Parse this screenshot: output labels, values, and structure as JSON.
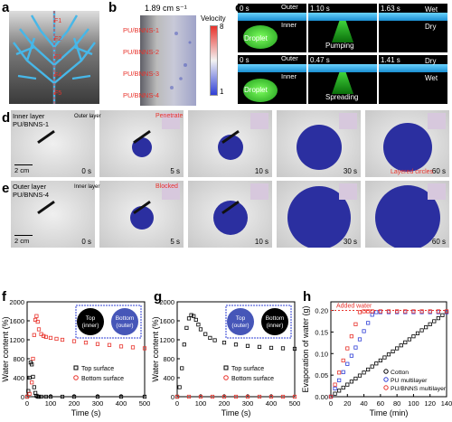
{
  "panels": {
    "a": {
      "label": "a",
      "forces": [
        "F1",
        "F2",
        "F3",
        "F4",
        "F5"
      ]
    },
    "b": {
      "label": "b",
      "flow": "1.89 cm s⁻¹",
      "layers": [
        "PU/BNNS-1",
        "PU/BNNS-2",
        "PU/BNNS-3",
        "PU/BNNS-4"
      ],
      "legend_title": "Velocity",
      "legend_max": "8",
      "legend_min": "1"
    },
    "c": {
      "label": "c",
      "row1": {
        "times": [
          "0 s",
          "1.10 s",
          "1.63 s"
        ],
        "outer": "Outer",
        "inner": "Inner",
        "droplet": "Droplet",
        "action": "Pumping",
        "state_top": "Wet",
        "state_bottom": "Dry"
      },
      "row2": {
        "times": [
          "0 s",
          "0.47 s",
          "1.41 s"
        ],
        "outer": "Outer",
        "inner": "Inner",
        "droplet": "Droplet",
        "action": "Spreading",
        "state_top": "Dry",
        "state_bottom": "Wet"
      }
    },
    "d": {
      "label": "d",
      "title_line1": "Inner layer",
      "title_line2": "PU/BNNS-1",
      "inset_label": "Outer layer",
      "penetrate": "Penetrate",
      "layered": "Layered circles",
      "scale": "2 cm",
      "times": [
        "0 s",
        "5 s",
        "10 s",
        "30 s",
        "60 s"
      ]
    },
    "e": {
      "label": "e",
      "title_line1": "Outer layer",
      "title_line2": "PU/BNNS-4",
      "inset_label": "Inner layer",
      "blocked": "Blocked",
      "scale": "2 cm",
      "times": [
        "0 s",
        "5 s",
        "10 s",
        "30 s",
        "60 s"
      ]
    },
    "f": {
      "label": "f",
      "ylabel": "Water content (%)",
      "xlabel": "Time (s)",
      "legend": [
        "Top surface",
        "Bottom surface"
      ],
      "inset": [
        "Top",
        "(inner)",
        "Bottom",
        "(outer)"
      ]
    },
    "g": {
      "label": "g",
      "ylabel": "Water content (%)",
      "xlabel": "Time (s)",
      "legend": [
        "Top surface",
        "Bottom surface"
      ],
      "inset": [
        "Top",
        "(outer)",
        "Bottom",
        "(inner)"
      ]
    },
    "h": {
      "label": "h",
      "ylabel": "Evaporation of water (g)",
      "xlabel": "Time (min)",
      "annotation": "Added water",
      "legend": [
        "Cotton",
        "PU multilayer",
        "PU/BNNS multilayer"
      ]
    }
  },
  "chart_data": [
    {
      "id": "f",
      "type": "scatter",
      "xlim": [
        0,
        500
      ],
      "ylim": [
        0,
        2000
      ],
      "xticks": [
        0,
        100,
        200,
        300,
        400,
        500
      ],
      "yticks": [
        0,
        400,
        800,
        1200,
        1600,
        2000
      ],
      "series": [
        {
          "name": "Top surface",
          "color": "#000000",
          "x": [
            0,
            5,
            10,
            15,
            20,
            25,
            30,
            35,
            40,
            45,
            50,
            60,
            80,
            100,
            150,
            200,
            300,
            400,
            500
          ],
          "y": [
            0,
            120,
            400,
            720,
            680,
            420,
            200,
            80,
            20,
            0,
            0,
            0,
            0,
            0,
            0,
            0,
            0,
            0,
            0
          ]
        },
        {
          "name": "Bottom surface",
          "color": "#e8322b",
          "x": [
            0,
            10,
            20,
            25,
            30,
            35,
            40,
            45,
            50,
            60,
            70,
            80,
            100,
            125,
            150,
            200,
            250,
            300,
            350,
            400,
            450,
            500
          ],
          "y": [
            0,
            60,
            300,
            800,
            1300,
            1620,
            1700,
            1580,
            1420,
            1320,
            1280,
            1260,
            1240,
            1220,
            1200,
            1170,
            1140,
            1110,
            1090,
            1060,
            1040,
            1020
          ]
        }
      ]
    },
    {
      "id": "g",
      "type": "scatter",
      "xlim": [
        0,
        500
      ],
      "ylim": [
        0,
        2000
      ],
      "xticks": [
        0,
        100,
        200,
        300,
        400,
        500
      ],
      "yticks": [
        0,
        400,
        800,
        1200,
        1600,
        2000
      ],
      "series": [
        {
          "name": "Top surface",
          "color": "#000000",
          "x": [
            0,
            10,
            20,
            30,
            40,
            50,
            60,
            70,
            80,
            90,
            100,
            120,
            140,
            160,
            200,
            250,
            300,
            350,
            400,
            450,
            500
          ],
          "y": [
            0,
            200,
            600,
            1100,
            1450,
            1650,
            1720,
            1700,
            1620,
            1520,
            1420,
            1320,
            1240,
            1190,
            1140,
            1100,
            1070,
            1050,
            1030,
            1020,
            1010
          ]
        },
        {
          "name": "Bottom surface",
          "color": "#e8322b",
          "x": [
            0,
            50,
            100,
            150,
            200,
            250,
            300,
            350,
            400,
            450,
            500
          ],
          "y": [
            0,
            0,
            0,
            0,
            0,
            0,
            0,
            0,
            0,
            0,
            0
          ]
        }
      ]
    },
    {
      "id": "h",
      "type": "scatter",
      "xlim": [
        0,
        140
      ],
      "ylim": [
        0,
        0.22
      ],
      "xticks": [
        0,
        20,
        40,
        60,
        80,
        100,
        120,
        140
      ],
      "yticks": [
        0,
        0.05,
        0.1,
        0.15,
        0.2
      ],
      "added_water": 0.2,
      "series": [
        {
          "name": "Cotton",
          "color": "#000000",
          "x": [
            0,
            5,
            10,
            15,
            20,
            25,
            30,
            35,
            40,
            45,
            50,
            55,
            60,
            65,
            70,
            75,
            80,
            85,
            90,
            95,
            100,
            105,
            110,
            115,
            120,
            125,
            130,
            135,
            140
          ],
          "y": [
            0,
            0.007,
            0.014,
            0.021,
            0.028,
            0.035,
            0.042,
            0.049,
            0.056,
            0.063,
            0.07,
            0.077,
            0.084,
            0.091,
            0.098,
            0.105,
            0.112,
            0.119,
            0.126,
            0.133,
            0.14,
            0.147,
            0.154,
            0.161,
            0.168,
            0.175,
            0.182,
            0.189,
            0.196
          ]
        },
        {
          "name": "PU multilayer",
          "color": "#2f3fd6",
          "x": [
            0,
            5,
            10,
            15,
            20,
            25,
            30,
            35,
            40,
            45,
            50,
            55,
            60,
            70,
            80,
            90,
            100,
            110,
            120,
            130,
            140
          ],
          "y": [
            0,
            0.019,
            0.038,
            0.057,
            0.076,
            0.095,
            0.114,
            0.133,
            0.152,
            0.171,
            0.19,
            0.196,
            0.196,
            0.196,
            0.196,
            0.196,
            0.196,
            0.196,
            0.196,
            0.196,
            0.196
          ]
        },
        {
          "name": "PU/BNNS multilayer",
          "color": "#e8322b",
          "x": [
            0,
            5,
            10,
            15,
            20,
            25,
            30,
            35,
            40,
            45,
            50,
            60,
            70,
            80,
            90,
            100,
            110,
            120,
            130,
            140
          ],
          "y": [
            0,
            0.028,
            0.056,
            0.084,
            0.112,
            0.14,
            0.168,
            0.196,
            0.198,
            0.198,
            0.198,
            0.198,
            0.198,
            0.198,
            0.198,
            0.198,
            0.198,
            0.198,
            0.198,
            0.198
          ]
        }
      ]
    }
  ]
}
